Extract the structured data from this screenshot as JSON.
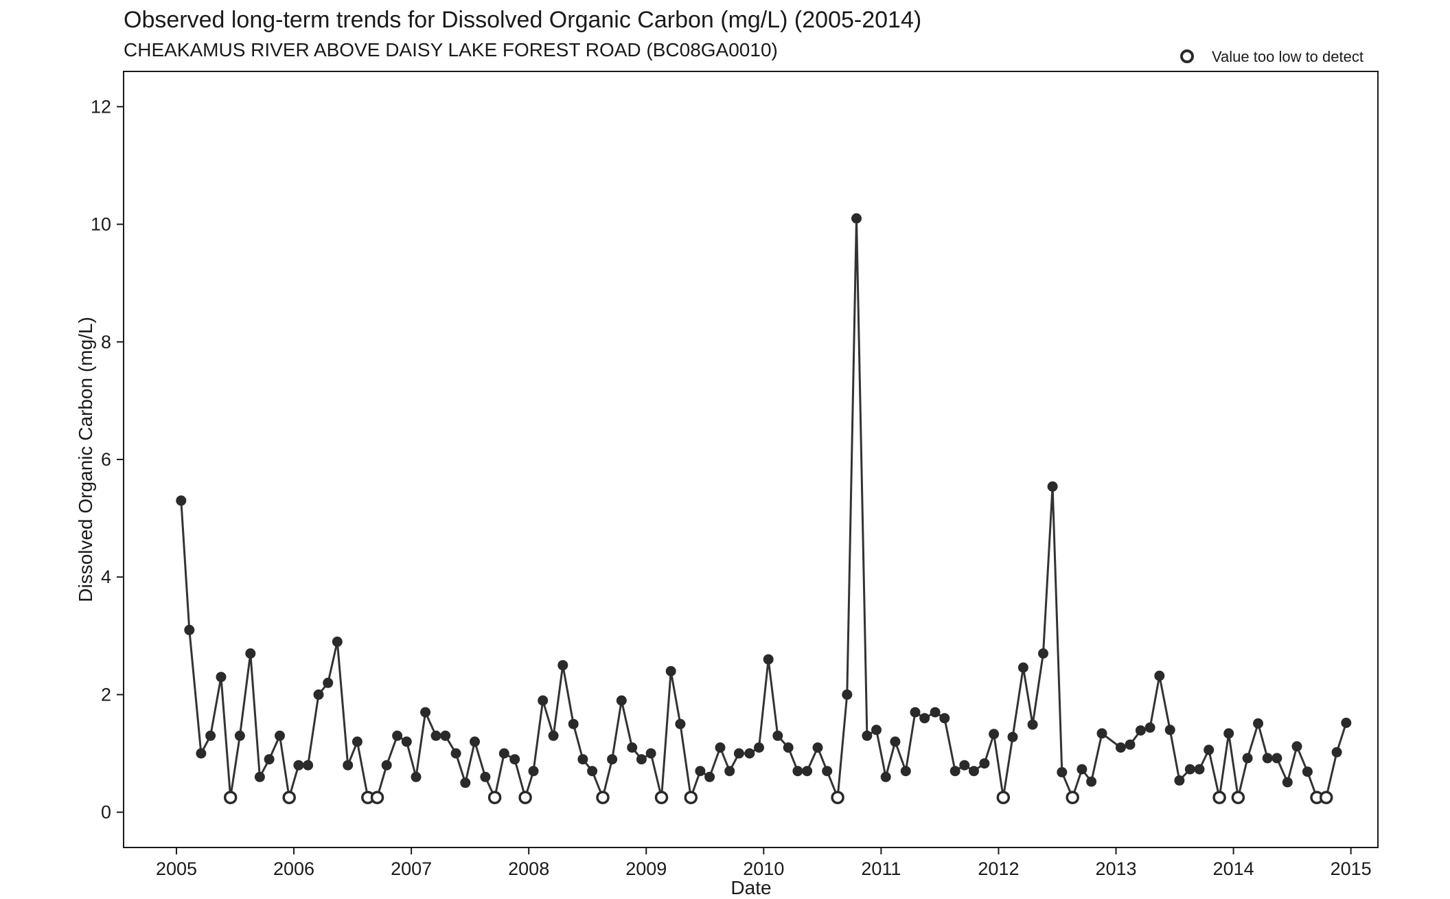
{
  "chart_data": {
    "type": "line",
    "title": "Observed long-term trends for Dissolved Organic Carbon (mg/L) (2005-2014)",
    "subtitle": "CHEAKAMUS RIVER ABOVE DAISY LAKE FOREST ROAD (BC08GA0010)",
    "xlabel": "Date",
    "ylabel": "Dissolved Organic Carbon (mg/L)",
    "xlim": [
      2004.55,
      2015.23
    ],
    "ylim": [
      -0.6,
      12.6
    ],
    "x_ticks": [
      "2005",
      "2006",
      "2007",
      "2008",
      "2009",
      "2010",
      "2011",
      "2012",
      "2013",
      "2014",
      "2015"
    ],
    "y_ticks": [
      "0",
      "2",
      "4",
      "6",
      "8",
      "10",
      "12"
    ],
    "grid": false,
    "legend": {
      "position": "top-right",
      "entries": [
        {
          "label": "Value too low to detect",
          "marker": "open-circle"
        }
      ]
    },
    "colors": {
      "line": "#333333",
      "marker": "#2a2a2a",
      "axis": "#1a1a1a"
    },
    "series": [
      {
        "x": [
          2005.04,
          2005.11,
          2005.21,
          2005.29,
          2005.38,
          2005.46,
          2005.54,
          2005.63,
          2005.71,
          2005.79,
          2005.88,
          2005.96,
          2006.04,
          2006.12,
          2006.21,
          2006.29,
          2006.37,
          2006.46,
          2006.54,
          2006.63,
          2006.71,
          2006.79,
          2006.88,
          2006.96,
          2007.04,
          2007.12,
          2007.21,
          2007.29,
          2007.38,
          2007.46,
          2007.54,
          2007.63,
          2007.71,
          2007.79,
          2007.88,
          2007.97,
          2008.04,
          2008.12,
          2008.21,
          2008.29,
          2008.38,
          2008.46,
          2008.54,
          2008.63,
          2008.71,
          2008.79,
          2008.88,
          2008.96,
          2009.04,
          2009.13,
          2009.21,
          2009.29,
          2009.38,
          2009.46,
          2009.54,
          2009.63,
          2009.71,
          2009.79,
          2009.88,
          2009.96,
          2010.04,
          2010.12,
          2010.21,
          2010.29,
          2010.37,
          2010.46,
          2010.54,
          2010.63,
          2010.71,
          2010.79,
          2010.88,
          2010.96,
          2011.04,
          2011.12,
          2011.21,
          2011.29,
          2011.37,
          2011.46,
          2011.54,
          2011.63,
          2011.71,
          2011.79,
          2011.88,
          2011.96,
          2012.04,
          2012.12,
          2012.21,
          2012.29,
          2012.38,
          2012.46,
          2012.54,
          2012.63,
          2012.71,
          2012.79,
          2012.88,
          2013.04,
          2013.12,
          2013.21,
          2013.29,
          2013.37,
          2013.46,
          2013.54,
          2013.63,
          2013.71,
          2013.79,
          2013.88,
          2013.96,
          2014.04,
          2014.12,
          2014.21,
          2014.29,
          2014.37,
          2014.46,
          2014.54,
          2014.63,
          2014.71,
          2014.79,
          2014.88,
          2014.96
        ],
        "y": [
          5.3,
          3.1,
          1.0,
          1.3,
          2.3,
          0.25,
          1.3,
          2.7,
          0.6,
          0.9,
          1.3,
          0.25,
          0.8,
          0.8,
          2.0,
          2.2,
          2.9,
          0.8,
          1.2,
          0.25,
          0.25,
          0.8,
          1.3,
          1.2,
          0.6,
          1.7,
          1.3,
          1.3,
          1.0,
          0.5,
          1.2,
          0.6,
          0.25,
          1.0,
          0.9,
          0.25,
          0.7,
          1.9,
          1.3,
          2.5,
          1.5,
          0.9,
          0.7,
          0.25,
          0.9,
          1.9,
          1.1,
          0.9,
          1.0,
          0.25,
          2.4,
          1.5,
          0.25,
          0.7,
          0.6,
          1.1,
          0.7,
          1.0,
          1.0,
          1.1,
          2.6,
          1.3,
          1.1,
          0.7,
          0.7,
          1.1,
          0.7,
          0.25,
          2.0,
          10.1,
          1.3,
          1.4,
          0.6,
          1.2,
          0.7,
          1.7,
          1.6,
          1.7,
          1.6,
          0.7,
          0.8,
          0.7,
          0.83,
          1.33,
          0.25,
          1.28,
          2.46,
          1.49,
          2.7,
          5.54,
          0.68,
          0.25,
          0.73,
          0.52,
          1.34,
          1.1,
          1.15,
          1.39,
          1.44,
          2.32,
          1.4,
          0.54,
          0.73,
          0.73,
          1.06,
          0.25,
          1.34,
          0.25,
          0.92,
          1.51,
          0.92,
          0.92,
          0.51,
          1.12,
          0.69,
          0.25,
          0.25,
          1.02,
          1.52
        ],
        "below_detection": [
          false,
          false,
          false,
          false,
          false,
          true,
          false,
          false,
          false,
          false,
          false,
          true,
          false,
          false,
          false,
          false,
          false,
          false,
          false,
          true,
          true,
          false,
          false,
          false,
          false,
          false,
          false,
          false,
          false,
          false,
          false,
          false,
          true,
          false,
          false,
          true,
          false,
          false,
          false,
          false,
          false,
          false,
          false,
          true,
          false,
          false,
          false,
          false,
          false,
          true,
          false,
          false,
          true,
          false,
          false,
          false,
          false,
          false,
          false,
          false,
          false,
          false,
          false,
          false,
          false,
          false,
          false,
          true,
          false,
          false,
          false,
          false,
          false,
          false,
          false,
          false,
          false,
          false,
          false,
          false,
          false,
          false,
          false,
          false,
          true,
          false,
          false,
          false,
          false,
          false,
          false,
          true,
          false,
          false,
          false,
          false,
          false,
          false,
          false,
          false,
          false,
          false,
          false,
          false,
          false,
          true,
          false,
          true,
          false,
          false,
          false,
          false,
          false,
          false,
          false,
          true,
          true,
          false,
          false
        ]
      }
    ]
  }
}
